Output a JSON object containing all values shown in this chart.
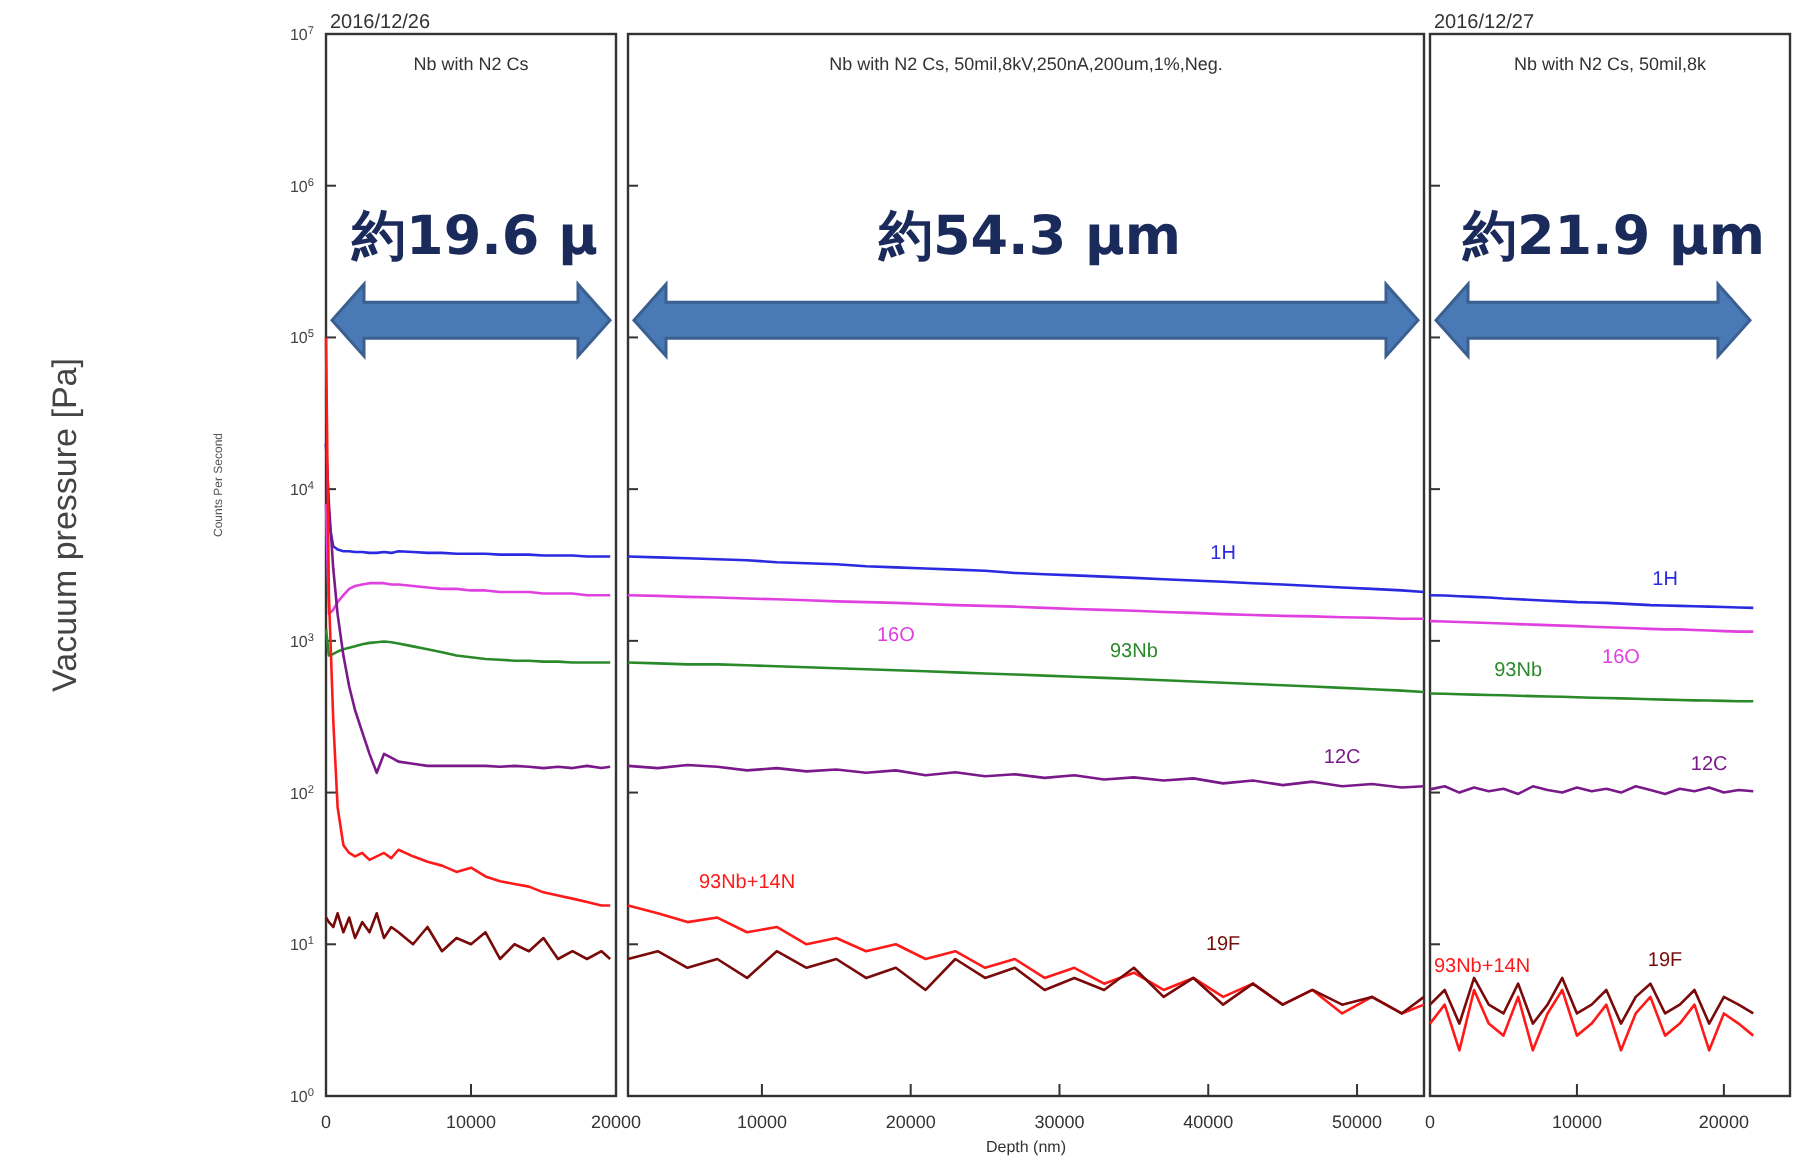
{
  "chart_data": [
    {
      "type": "line",
      "title": "2016/12/26",
      "subtitle": "Nb with N2  Cs",
      "ylabel": "Vacuum pressure [Pa]",
      "log": true,
      "grid": false,
      "legend": false,
      "marker": "none",
      "line_style": "solid",
      "annotations": [
        "Counts Per Second",
        "約19.6 μ"
      ],
      "xlim": [
        0,
        20000
      ],
      "xticks": [
        0,
        10000,
        20000
      ],
      "ylim": [
        1,
        10000000
      ],
      "yticks": [
        {
          "value": 1,
          "label": "10$^{0}$"
        },
        {
          "value": 10,
          "label": "10$^{1}$"
        },
        {
          "value": 100,
          "label": "10$^{2}$"
        },
        {
          "value": 1000,
          "label": "10$^{3}$"
        },
        {
          "value": 10000,
          "label": "10$^{4}$"
        },
        {
          "value": 100000,
          "label": "10$^{5}$"
        },
        {
          "value": 1000000,
          "label": "10$^{6}$"
        },
        {
          "value": 10000000,
          "label": "10$^{7}$"
        }
      ],
      "x": [
        0,
        200,
        500,
        800,
        1200,
        1600,
        2000,
        2500,
        3000,
        3500,
        4000,
        4500,
        5000,
        6000,
        7000,
        8000,
        9000,
        10000,
        11000,
        12000,
        13000,
        14000,
        15000,
        16000,
        17000,
        18000,
        19000,
        19600
      ],
      "series": [
        {
          "color": "#2a2ae0",
          "values": [
            20000,
            6000,
            4200,
            4000,
            3900,
            3900,
            3850,
            3850,
            3800,
            3800,
            3850,
            3800,
            3900,
            3850,
            3800,
            3800,
            3750,
            3750,
            3750,
            3700,
            3700,
            3700,
            3650,
            3650,
            3650,
            3600,
            3600,
            3600
          ]
        },
        {
          "color": "#e040e0",
          "values": [
            8000,
            1500,
            1600,
            1800,
            2000,
            2200,
            2300,
            2350,
            2400,
            2400,
            2400,
            2350,
            2350,
            2300,
            2250,
            2200,
            2200,
            2150,
            2150,
            2100,
            2100,
            2100,
            2050,
            2050,
            2050,
            2000,
            2000,
            2000
          ]
        },
        {
          "color": "#2a8a2a",
          "values": [
            1200,
            800,
            820,
            850,
            880,
            900,
            920,
            950,
            970,
            980,
            990,
            980,
            960,
            920,
            880,
            840,
            800,
            780,
            760,
            750,
            740,
            740,
            730,
            730,
            720,
            720,
            720,
            720
          ]
        },
        {
          "color": "#7a1a8a",
          "values": [
            20000,
            8000,
            3000,
            1500,
            800,
            500,
            350,
            250,
            180,
            135,
            180,
            170,
            160,
            155,
            150,
            150,
            150,
            150,
            150,
            148,
            150,
            148,
            145,
            148,
            145,
            150,
            145,
            148
          ]
        },
        {
          "color": "#ff1a1a",
          "values": [
            100000,
            2000,
            300,
            80,
            45,
            40,
            38,
            40,
            36,
            38,
            40,
            37,
            42,
            38,
            35,
            33,
            30,
            32,
            28,
            26,
            25,
            24,
            22,
            21,
            20,
            19,
            18,
            18
          ]
        },
        {
          "color": "#7a0a0a",
          "values": [
            15,
            14,
            13,
            16,
            12,
            15,
            11,
            14,
            12,
            16,
            11,
            13,
            12,
            10,
            13,
            9,
            11,
            10,
            12,
            8,
            10,
            9,
            11,
            8,
            9,
            8,
            9,
            8
          ]
        }
      ]
    },
    {
      "type": "line",
      "subtitle": "Nb with N2  Cs, 50mil,8kV,250nA,200um,1%,Neg.",
      "xlabel": "Depth (nm)",
      "log": true,
      "grid": false,
      "legend": false,
      "marker": "none",
      "line_style": "solid",
      "tick_labels": "x",
      "annotations": [
        "約54.3 μm"
      ],
      "xlim": [
        1000,
        54500
      ],
      "xticks": [
        10000,
        20000,
        30000,
        40000,
        50000
      ],
      "ylim": [
        1,
        10000000
      ],
      "yticks": [
        {
          "value": 1,
          "label": null
        },
        {
          "value": 10,
          "label": null
        },
        {
          "value": 100,
          "label": null
        },
        {
          "value": 1000,
          "label": null
        },
        {
          "value": 10000,
          "label": null
        },
        {
          "value": 100000,
          "label": null
        },
        {
          "value": 1000000,
          "label": null
        },
        {
          "value": 10000000,
          "label": null
        }
      ],
      "x": [
        1000,
        3000,
        5000,
        7000,
        9000,
        11000,
        13000,
        15000,
        17000,
        19000,
        21000,
        23000,
        25000,
        27000,
        29000,
        31000,
        33000,
        35000,
        37000,
        39000,
        41000,
        43000,
        45000,
        47000,
        49000,
        51000,
        53000,
        54500
      ],
      "series": [
        {
          "name": "1H",
          "color": "#2a2ae0",
          "values": [
            3600,
            3550,
            3500,
            3450,
            3400,
            3300,
            3250,
            3200,
            3100,
            3050,
            3000,
            2950,
            2900,
            2800,
            2750,
            2700,
            2650,
            2600,
            2550,
            2500,
            2450,
            2400,
            2350,
            2300,
            2250,
            2200,
            2150,
            2100
          ]
        },
        {
          "name": "16O",
          "color": "#e040e0",
          "values": [
            2000,
            1980,
            1950,
            1930,
            1900,
            1880,
            1850,
            1820,
            1800,
            1780,
            1750,
            1720,
            1700,
            1680,
            1650,
            1620,
            1600,
            1580,
            1550,
            1530,
            1500,
            1480,
            1460,
            1450,
            1430,
            1420,
            1400,
            1400
          ]
        },
        {
          "name": "93Nb",
          "color": "#2a8a2a",
          "values": [
            720,
            710,
            700,
            700,
            690,
            680,
            670,
            660,
            650,
            640,
            630,
            620,
            610,
            600,
            590,
            580,
            570,
            560,
            550,
            540,
            530,
            520,
            510,
            500,
            490,
            480,
            470,
            460
          ]
        },
        {
          "name": "12C",
          "color": "#7a1a8a",
          "values": [
            150,
            145,
            152,
            148,
            140,
            145,
            138,
            142,
            135,
            140,
            130,
            136,
            128,
            132,
            125,
            130,
            122,
            126,
            120,
            124,
            115,
            120,
            112,
            118,
            110,
            114,
            108,
            110
          ]
        },
        {
          "name": "93Nb+14N",
          "color": "#ff1a1a",
          "values": [
            18,
            16,
            14,
            15,
            12,
            13,
            10,
            11,
            9,
            10,
            8,
            9,
            7,
            8,
            6,
            7,
            5.5,
            6.5,
            5,
            6,
            4.5,
            5.5,
            4,
            5,
            3.5,
            4.5,
            3.5,
            4
          ]
        },
        {
          "name": "19F",
          "color": "#7a0a0a",
          "values": [
            8,
            9,
            7,
            8,
            6,
            9,
            7,
            8,
            6,
            7,
            5,
            8,
            6,
            7,
            5,
            6,
            5,
            7,
            4.5,
            6,
            4,
            5.5,
            4,
            5,
            4,
            4.5,
            3.5,
            4.5
          ]
        }
      ]
    },
    {
      "type": "line",
      "title": "2016/12/27",
      "subtitle": "Nb with N2  Cs, 50mil,8k",
      "log": true,
      "grid": false,
      "legend": false,
      "marker": "none",
      "line_style": "solid",
      "tick_labels": "x",
      "annotations": [
        "約21.9 μm"
      ],
      "xlim": [
        0,
        24500
      ],
      "xticks": [
        0,
        10000,
        20000
      ],
      "ylim": [
        1,
        10000000
      ],
      "yticks": [
        {
          "value": 1,
          "label": null
        },
        {
          "value": 10,
          "label": null
        },
        {
          "value": 100,
          "label": null
        },
        {
          "value": 1000,
          "label": null
        },
        {
          "value": 10000,
          "label": null
        },
        {
          "value": 100000,
          "label": null
        },
        {
          "value": 1000000,
          "label": null
        },
        {
          "value": 10000000,
          "label": null
        }
      ],
      "x": [
        0,
        1000,
        2000,
        3000,
        4000,
        5000,
        6000,
        7000,
        8000,
        9000,
        10000,
        11000,
        12000,
        13000,
        14000,
        15000,
        16000,
        17000,
        18000,
        19000,
        20000,
        21000,
        22000
      ],
      "series": [
        {
          "name": "1H",
          "color": "#2a2ae0",
          "values": [
            2000,
            1990,
            1970,
            1950,
            1930,
            1900,
            1880,
            1860,
            1840,
            1820,
            1800,
            1790,
            1780,
            1760,
            1740,
            1720,
            1710,
            1700,
            1690,
            1680,
            1670,
            1660,
            1650
          ]
        },
        {
          "name": "16O",
          "color": "#e040e0",
          "values": [
            1350,
            1340,
            1330,
            1320,
            1310,
            1300,
            1290,
            1280,
            1270,
            1260,
            1250,
            1240,
            1230,
            1220,
            1210,
            1200,
            1190,
            1190,
            1180,
            1170,
            1160,
            1150,
            1150
          ]
        },
        {
          "name": "93Nb",
          "color": "#2a8a2a",
          "values": [
            450,
            448,
            445,
            442,
            440,
            438,
            435,
            432,
            430,
            428,
            425,
            422,
            420,
            418,
            415,
            412,
            410,
            408,
            405,
            404,
            402,
            400,
            400
          ]
        },
        {
          "name": "12C",
          "color": "#7a1a8a",
          "values": [
            105,
            110,
            100,
            108,
            102,
            106,
            98,
            110,
            104,
            100,
            108,
            102,
            106,
            100,
            110,
            104,
            98,
            106,
            102,
            108,
            100,
            104,
            102
          ]
        },
        {
          "name": "93Nb+14N",
          "color": "#ff1a1a",
          "values": [
            3,
            4,
            2,
            5,
            3,
            2.5,
            4.5,
            2,
            3.5,
            5,
            2.5,
            3,
            4,
            2,
            3.5,
            4.5,
            2.5,
            3,
            4,
            2,
            3.5,
            3,
            2.5
          ]
        },
        {
          "name": "19F",
          "color": "#7a0a0a",
          "values": [
            4,
            5,
            3,
            6,
            4,
            3.5,
            5.5,
            3,
            4,
            6,
            3.5,
            4,
            5,
            3,
            4.5,
            5.5,
            3.5,
            4,
            5,
            3,
            4.5,
            4,
            3.5
          ]
        }
      ]
    }
  ]
}
